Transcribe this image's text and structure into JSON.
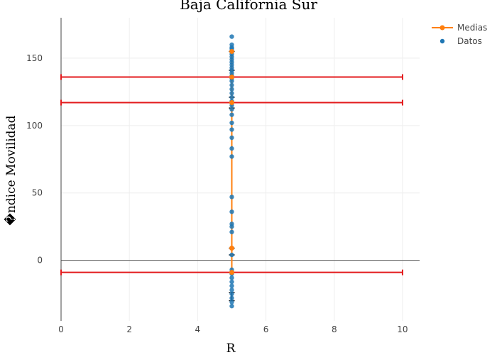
{
  "chart_data": {
    "type": "scatter",
    "title": "Baja California Sur",
    "xlabel": "R",
    "ylabel": "�ndice Movilidad",
    "xlim": [
      0,
      10.5
    ],
    "ylim": [
      -45,
      180
    ],
    "xticks": [
      0,
      2,
      4,
      6,
      8,
      10
    ],
    "yticks": [
      0,
      50,
      100,
      150
    ],
    "grid": true,
    "legend_position": "top-right",
    "series": [
      {
        "name": "Medias",
        "kind": "line+markers",
        "color": "#ff7f0e",
        "x": [
          5,
          5,
          5,
          5,
          5
        ],
        "y": [
          155,
          136,
          117,
          9,
          -9
        ],
        "errors": [
          {
            "y": 136,
            "x_minus": 5,
            "x_plus": 5
          },
          {
            "y": 117,
            "x_minus": 5,
            "x_plus": 5
          },
          {
            "y": -9,
            "x_minus": 5,
            "x_plus": 5
          }
        ]
      },
      {
        "name": "Datos",
        "kind": "markers",
        "color": "#1f77b4",
        "x": [
          5,
          5,
          5,
          5,
          5,
          5,
          5,
          5,
          5,
          5,
          5,
          5,
          5,
          5,
          5,
          5,
          5,
          5,
          5,
          5,
          5,
          5,
          5,
          5,
          5,
          5,
          5,
          5,
          5,
          5,
          5,
          5,
          5,
          5,
          5,
          5,
          5,
          5,
          5,
          5,
          5,
          5,
          5,
          5,
          5,
          5
        ],
        "y": [
          166,
          160,
          158,
          157,
          155,
          153,
          151,
          149,
          147,
          145,
          143,
          141,
          139,
          137,
          135,
          133,
          130,
          127,
          124,
          121,
          118,
          115,
          112,
          108,
          102,
          97,
          91,
          83,
          77,
          47,
          36,
          27,
          25,
          21,
          9,
          4,
          -7,
          -10,
          -13,
          -16,
          -19,
          -22,
          -25,
          -28,
          -31,
          -34
        ]
      }
    ],
    "error_color": "#e31a1c",
    "error_cap_color": "#000000"
  }
}
